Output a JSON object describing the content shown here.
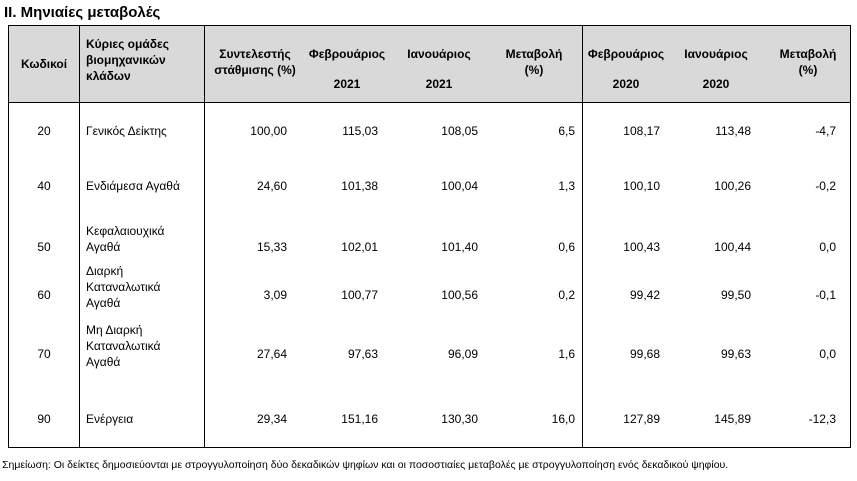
{
  "title": "ΙΙ. Μηνιαίες μεταβολές",
  "headers": {
    "code": "Κωδικοί",
    "groups_line1": "Κύριες ομάδες",
    "groups_line2": "βιομηχανικών",
    "groups_line3": "κλάδων",
    "weight_line1": "Συντελεστής",
    "weight_line2": "στάθμισης (%)",
    "feb_label": "Φεβρουάριος",
    "jan_label": "Ιανουάριος",
    "change_label": "Μεταβολή",
    "change_unit": "(%)",
    "year_2021": "2021",
    "year_2020": "2020"
  },
  "rows": [
    {
      "code": "20",
      "name_lines": [
        "Γενικός Δείκτης"
      ],
      "weight": "100,00",
      "feb2021": "115,03",
      "jan2021": "108,05",
      "chg2021": "6,5",
      "feb2020": "108,17",
      "jan2020": "113,48",
      "chg2020": "-4,7"
    },
    {
      "code": "40",
      "name_lines": [
        "Ενδιάμεσα Αγαθά"
      ],
      "weight": "24,60",
      "feb2021": "101,38",
      "jan2021": "100,04",
      "chg2021": "1,3",
      "feb2020": "100,10",
      "jan2020": "100,26",
      "chg2020": "-0,2"
    },
    {
      "code": "50",
      "name_lines": [
        "Κεφαλαιουχικά",
        "Αγαθά"
      ],
      "weight": "15,33",
      "feb2021": "102,01",
      "jan2021": "101,40",
      "chg2021": "0,6",
      "feb2020": "100,43",
      "jan2020": "100,44",
      "chg2020": "0,0"
    },
    {
      "code": "60",
      "name_lines": [
        "Διαρκή",
        "Καταναλωτικά",
        "Αγαθά"
      ],
      "weight": "3,09",
      "feb2021": "100,77",
      "jan2021": "100,56",
      "chg2021": "0,2",
      "feb2020": "99,42",
      "jan2020": "99,50",
      "chg2020": "-0,1"
    },
    {
      "code": "70",
      "name_lines": [
        "Μη Διαρκή",
        "Καταναλωτικά",
        "Αγαθά"
      ],
      "weight": "27,64",
      "feb2021": "97,63",
      "jan2021": "96,09",
      "chg2021": "1,6",
      "feb2020": "99,68",
      "jan2020": "99,63",
      "chg2020": "0,0"
    },
    {
      "code": "90",
      "name_lines": [
        "Ενέργεια"
      ],
      "weight": "29,34",
      "feb2021": "151,16",
      "jan2021": "130,30",
      "chg2021": "16,0",
      "feb2020": "127,89",
      "jan2020": "145,89",
      "chg2020": "-12,3"
    }
  ],
  "note": "Σημείωση: Οι δείκτες δημοσιεύονται με στρογγυλοποίηση δύο δεκαδικών ψηφίων και οι ποσοστιαίες μεταβολές με στρογγυλοποίηση ενός δεκαδικού ψηφίου."
}
